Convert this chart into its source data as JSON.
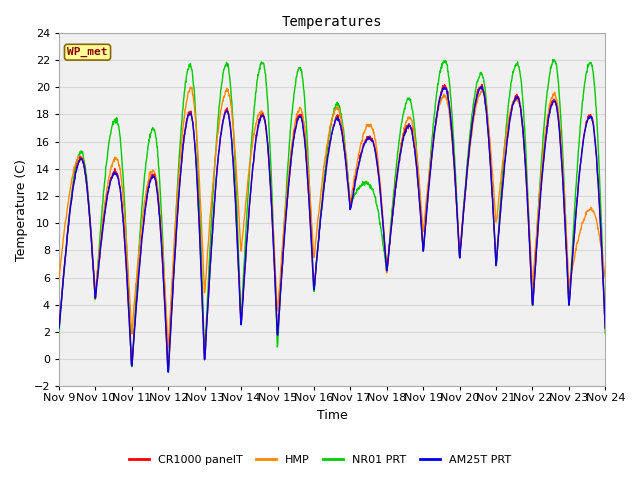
{
  "title": "Temperatures",
  "xlabel": "Time",
  "ylabel": "Temperature (C)",
  "ylim": [
    -2,
    24
  ],
  "yticks": [
    -2,
    0,
    2,
    4,
    6,
    8,
    10,
    12,
    14,
    16,
    18,
    20,
    22,
    24
  ],
  "xtick_labels": [
    "Nov 9",
    "Nov 10",
    "Nov 11",
    "Nov 12",
    "Nov 13",
    "Nov 14",
    "Nov 15",
    "Nov 16",
    "Nov 17",
    "Nov 18",
    "Nov 19",
    "Nov 20",
    "Nov 21",
    "Nov 22",
    "Nov 23",
    "Nov 24"
  ],
  "legend_labels": [
    "CR1000 panelT",
    "HMP",
    "NR01 PRT",
    "AM25T PRT"
  ],
  "legend_colors": [
    "#ff0000",
    "#ff8800",
    "#00cc00",
    "#0000ee"
  ],
  "wp_met_box_facecolor": "#ffff99",
  "wp_met_text_color": "#880000",
  "wp_met_box_edgecolor": "#886600",
  "background_color": "#f0f0f0",
  "grid_color": "#d8d8d8",
  "line_colors": {
    "CR1000": "#ff0000",
    "HMP": "#ff8800",
    "NR01": "#00cc00",
    "AM25T": "#0000ee"
  },
  "line_width": 1.0,
  "num_days": 15,
  "points_per_day": 96,
  "day_lows_am25t": [
    2.2,
    4.5,
    -0.5,
    -1.0,
    0.0,
    2.5,
    1.8,
    5.2,
    11.0,
    6.5,
    8.0,
    7.5,
    7.0,
    4.0,
    4.0
  ],
  "day_highs_am25t": [
    14.5,
    14.0,
    13.5,
    18.0,
    18.0,
    18.0,
    17.5,
    17.0,
    16.5,
    17.0,
    20.0,
    20.0,
    19.5,
    19.0,
    18.0
  ],
  "day_lows_hmp": [
    6.0,
    5.0,
    2.0,
    1.0,
    5.0,
    8.0,
    3.5,
    7.5,
    11.5,
    6.5,
    9.5,
    8.0,
    10.0,
    5.5,
    5.5
  ],
  "day_highs_hmp": [
    15.0,
    15.0,
    14.0,
    19.5,
    19.5,
    18.5,
    18.0,
    18.0,
    17.5,
    17.5,
    19.5,
    19.5,
    19.5,
    19.5,
    11.0
  ],
  "day_lows_nr01": [
    2.0,
    4.5,
    -0.5,
    -1.0,
    0.5,
    3.0,
    1.0,
    5.0,
    11.5,
    6.5,
    8.0,
    7.5,
    7.0,
    4.0,
    4.0
  ],
  "day_highs_nr01": [
    15.0,
    18.0,
    17.0,
    21.5,
    21.5,
    22.0,
    21.0,
    18.0,
    13.0,
    19.0,
    22.0,
    21.0,
    22.0,
    22.0,
    22.0
  ],
  "figsize": [
    6.4,
    4.8
  ],
  "dpi": 100
}
